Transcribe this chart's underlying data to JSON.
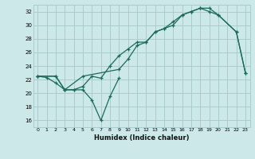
{
  "background_color": "#cce8e8",
  "grid_color": "#aacccc",
  "line_color": "#1a6b5a",
  "xlabel": "Humidex (Indice chaleur)",
  "xlim": [
    -0.5,
    23.5
  ],
  "ylim": [
    15.0,
    33.0
  ],
  "yticks": [
    16,
    18,
    20,
    22,
    24,
    26,
    28,
    30,
    32
  ],
  "xticks": [
    0,
    1,
    2,
    3,
    4,
    5,
    6,
    7,
    8,
    9,
    10,
    11,
    12,
    13,
    14,
    15,
    16,
    17,
    18,
    19,
    20,
    21,
    22,
    23
  ],
  "series1_x": [
    0,
    1,
    2,
    3,
    4,
    5,
    6,
    7,
    8,
    9
  ],
  "series1_y": [
    22.5,
    22.3,
    21.5,
    20.5,
    20.5,
    20.5,
    19.0,
    16.0,
    19.5,
    22.2
  ],
  "series2_x": [
    0,
    2,
    3,
    4,
    5,
    6,
    7,
    8,
    9,
    10,
    11,
    12,
    13,
    14,
    15,
    16,
    17,
    18,
    19,
    20,
    22,
    23
  ],
  "series2_y": [
    22.5,
    22.5,
    20.5,
    20.5,
    21.0,
    22.5,
    22.2,
    24.0,
    25.5,
    26.5,
    27.5,
    27.5,
    29.0,
    29.5,
    30.0,
    31.5,
    32.0,
    32.5,
    32.0,
    31.5,
    29.0,
    23.0
  ],
  "series3_x": [
    0,
    2,
    3,
    5,
    9,
    10,
    11,
    12,
    13,
    14,
    15,
    16,
    17,
    18,
    19,
    20,
    22,
    23
  ],
  "series3_y": [
    22.5,
    22.5,
    20.5,
    22.5,
    23.5,
    25.0,
    27.0,
    27.5,
    29.0,
    29.5,
    30.5,
    31.5,
    32.0,
    32.5,
    32.5,
    31.5,
    29.0,
    23.0
  ]
}
